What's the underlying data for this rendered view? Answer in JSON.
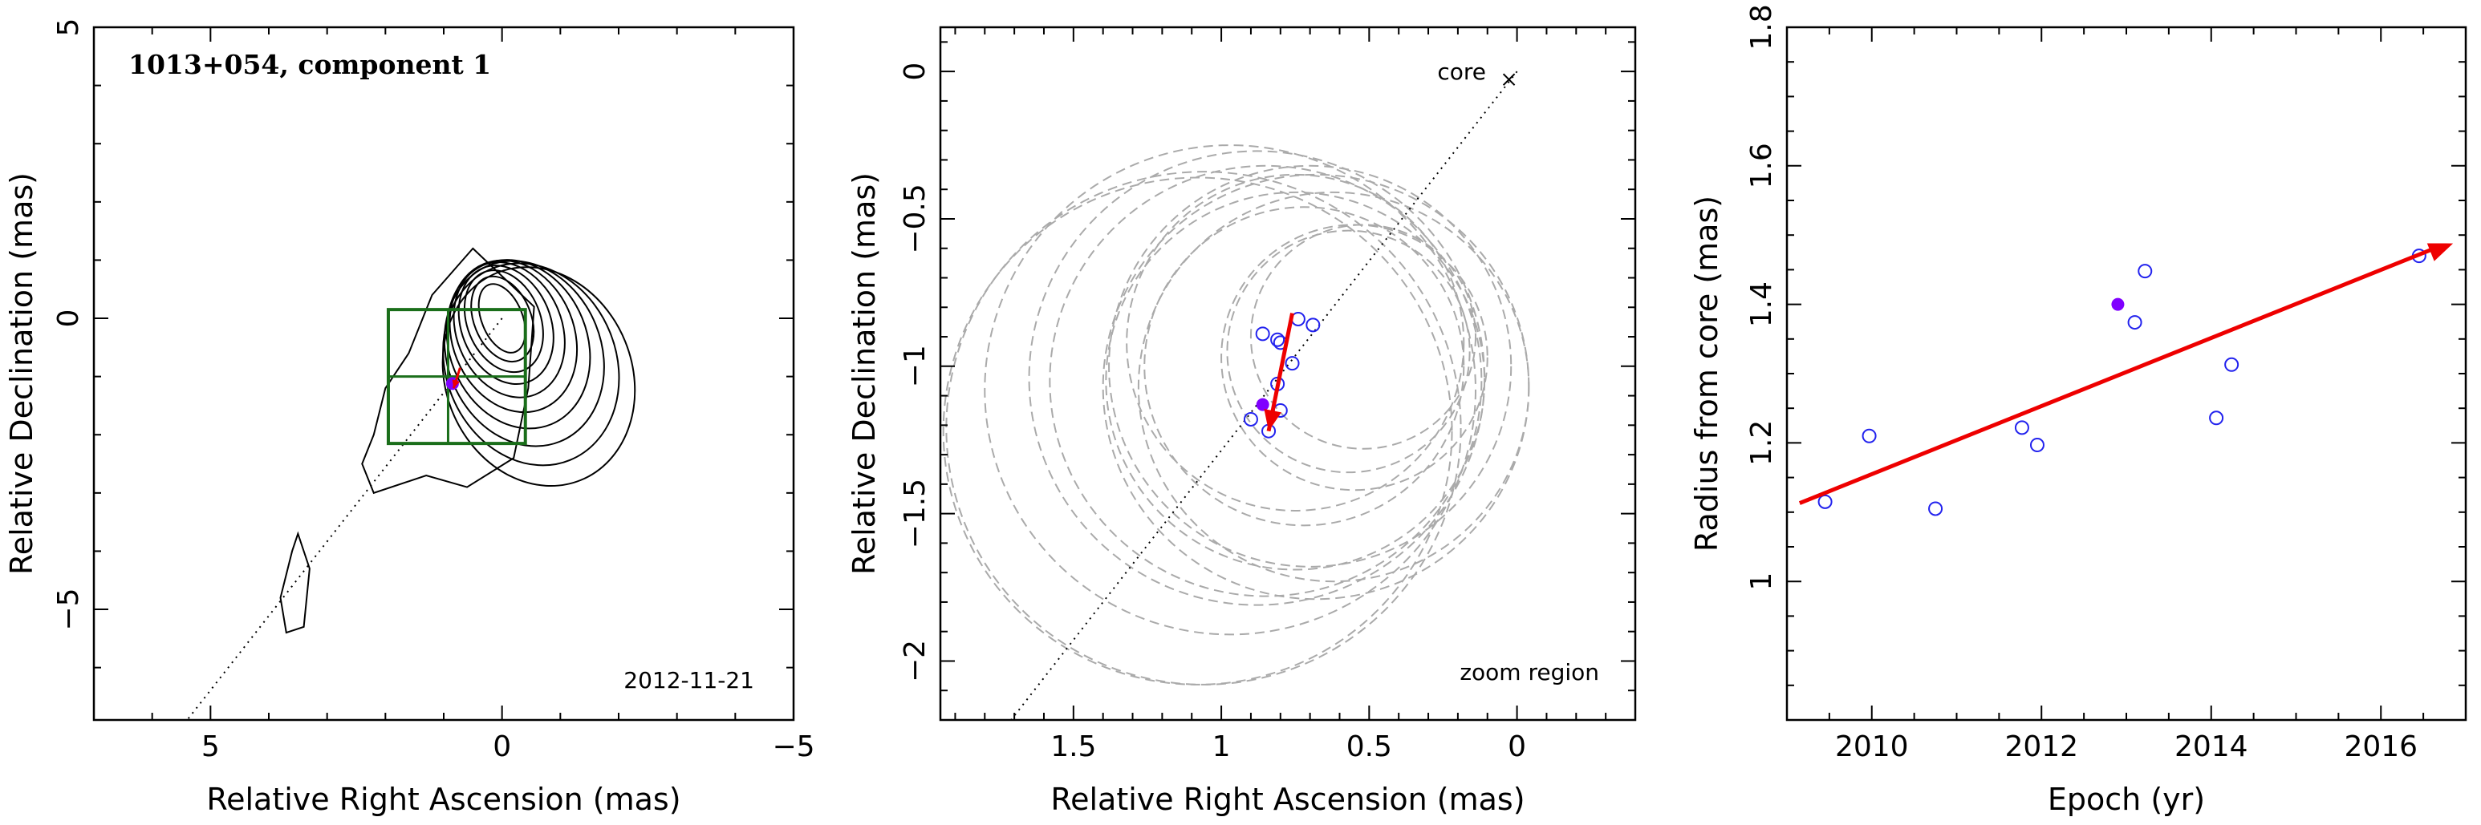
{
  "chart_data": [
    {
      "type": "contour",
      "title": "1013+054, component 1",
      "xlabel": "Relative Right Ascension (mas)",
      "ylabel": "Relative Declination (mas)",
      "xlim": [
        7,
        -5
      ],
      "ylim": [
        -6.9,
        5
      ],
      "xticks": [
        5,
        0,
        -5
      ],
      "xtick_labels": [
        "5",
        "0",
        "−5"
      ],
      "yticks": [
        5,
        0,
        -5
      ],
      "ytick_labels": [
        "5",
        "0",
        "−5"
      ],
      "epoch": "2012-11-21",
      "contour_center": [
        0,
        0
      ],
      "contour_levels": 10,
      "zoom_box": {
        "x": [
          -0.4,
          1.95
        ],
        "y": [
          -2.15,
          0.15
        ]
      },
      "jet_direction_line": {
        "from": [
          0,
          0
        ],
        "to": [
          5.4,
          -6.9
        ]
      },
      "component_position": [
        0.85,
        -1.12
      ],
      "component_vector": {
        "from": [
          0.72,
          -0.85
        ],
        "to": [
          0.83,
          -1.2
        ]
      },
      "colors": {
        "contours": "#000000",
        "zoom_box": "#1a6e1a",
        "arrow": "#ee0000",
        "component": "#8000ff"
      }
    },
    {
      "type": "scatter",
      "title": "",
      "xlabel": "Relative Right Ascension (mas)",
      "ylabel": "Relative Declination (mas)",
      "xlim": [
        1.95,
        -0.4
      ],
      "ylim": [
        -2.2,
        0.15
      ],
      "xticks": [
        1.5,
        1,
        0.5,
        0
      ],
      "xtick_labels": [
        "1.5",
        "1",
        "0.5",
        "0"
      ],
      "yticks": [
        0,
        -0.5,
        -1,
        -1.5,
        -2
      ],
      "ytick_labels": [
        "0",
        "−0.5",
        "−1",
        "−1.5",
        "−2"
      ],
      "core_label": "core",
      "core_position": [
        0,
        0
      ],
      "zoom_region_label": "zoom region",
      "points": [
        {
          "x": 0.86,
          "y": -0.89
        },
        {
          "x": 0.81,
          "y": -0.91
        },
        {
          "x": 0.8,
          "y": -0.92
        },
        {
          "x": 0.74,
          "y": -0.84
        },
        {
          "x": 0.69,
          "y": -0.86
        },
        {
          "x": 0.76,
          "y": -0.99
        },
        {
          "x": 0.81,
          "y": -1.06
        },
        {
          "x": 0.8,
          "y": -1.15
        },
        {
          "x": 0.9,
          "y": -1.18
        },
        {
          "x": 0.84,
          "y": -1.22
        }
      ],
      "highlight_point": {
        "x": 0.86,
        "y": -1.13
      },
      "arrow": {
        "from": [
          0.76,
          -0.82
        ],
        "to": [
          0.84,
          -1.22
        ]
      },
      "beam_ellipses": [
        {
          "cx": 0.88,
          "cy": -1.04,
          "rx": 0.77,
          "ry": 0.77
        },
        {
          "cx": 0.97,
          "cy": -1.08,
          "rx": 0.83,
          "ry": 0.83
        },
        {
          "cx": 0.85,
          "cy": -1.05,
          "rx": 0.73,
          "ry": 0.73
        },
        {
          "cx": 0.68,
          "cy": -1.07,
          "rx": 0.72,
          "ry": 0.72
        },
        {
          "cx": 0.7,
          "cy": -1.0,
          "rx": 0.68,
          "ry": 0.68
        },
        {
          "cx": 0.62,
          "cy": -1.07,
          "rx": 0.66,
          "ry": 0.66
        },
        {
          "cx": 0.75,
          "cy": -1.05,
          "rx": 0.64,
          "ry": 0.64
        },
        {
          "cx": 0.72,
          "cy": -1.0,
          "rx": 0.54,
          "ry": 0.54
        },
        {
          "cx": 0.57,
          "cy": -0.95,
          "rx": 0.41,
          "ry": 0.41
        },
        {
          "cx": 0.52,
          "cy": -0.9,
          "rx": 0.38,
          "ry": 0.38
        },
        {
          "cx": 0.55,
          "cy": -0.97,
          "rx": 0.45,
          "ry": 0.45
        },
        {
          "cx": 0.75,
          "cy": -0.92,
          "rx": 0.57,
          "ry": 0.57
        },
        {
          "cx": 1.06,
          "cy": -1.21,
          "rx": 0.87,
          "ry": 0.87
        },
        {
          "cx": 1.08,
          "cy": -1.22,
          "rx": 0.86,
          "ry": 0.86
        }
      ],
      "colors": {
        "points": "#2222ee",
        "highlight": "#8000ff",
        "arrow": "#ee0000",
        "ellipses": "#aaaaaa"
      }
    },
    {
      "type": "scatter",
      "title": "",
      "xlabel": "Epoch (yr)",
      "ylabel": "Radius from core (mas)",
      "xlim": [
        2009.0,
        2017.0
      ],
      "ylim": [
        0.8,
        1.8
      ],
      "xticks": [
        2010,
        2012,
        2014,
        2016
      ],
      "xtick_labels": [
        "2010",
        "2012",
        "2014",
        "2016"
      ],
      "yticks": [
        1.0,
        1.2,
        1.4,
        1.6,
        1.8
      ],
      "ytick_labels": [
        "1",
        "1.2",
        "1.4",
        "1.6",
        "1.8"
      ],
      "points": [
        {
          "x": 2009.45,
          "y": 1.115
        },
        {
          "x": 2009.97,
          "y": 1.21
        },
        {
          "x": 2010.75,
          "y": 1.105
        },
        {
          "x": 2011.77,
          "y": 1.222
        },
        {
          "x": 2011.95,
          "y": 1.197
        },
        {
          "x": 2013.1,
          "y": 1.374
        },
        {
          "x": 2013.22,
          "y": 1.448
        },
        {
          "x": 2014.06,
          "y": 1.236
        },
        {
          "x": 2014.24,
          "y": 1.313
        },
        {
          "x": 2016.45,
          "y": 1.47
        }
      ],
      "highlight_point": {
        "x": 2012.9,
        "y": 1.4
      },
      "trend_arrow": {
        "from": [
          2009.15,
          1.113
        ],
        "to": [
          2016.85,
          1.488
        ]
      },
      "colors": {
        "points": "#2222ee",
        "highlight": "#8000ff",
        "arrow": "#ee0000"
      }
    }
  ]
}
